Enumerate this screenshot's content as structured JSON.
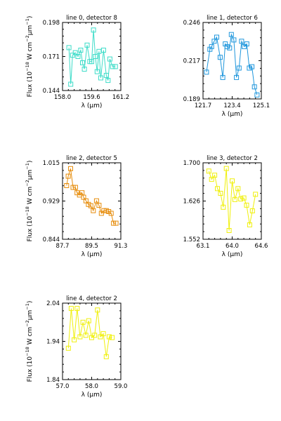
{
  "chart_data": [
    {
      "type": "line",
      "title": "line 0, detector 8",
      "color": "#3cdcc8",
      "xlim": [
        158.0,
        161.2
      ],
      "ylim": [
        0.144,
        0.198
      ],
      "xticks": [
        "158.0",
        "159.6",
        "161.2"
      ],
      "yticks": [
        "0.144",
        "0.171",
        "0.198"
      ],
      "xlabel": "λ (μm)",
      "ylabel": "Flux (10⁻¹⁸ W cm⁻² μm⁻¹)",
      "show_ylabel": true,
      "x": [
        158.35,
        158.45,
        158.55,
        158.7,
        158.85,
        159.0,
        159.1,
        159.2,
        159.35,
        159.5,
        159.6,
        159.7,
        159.8,
        159.9,
        160.0,
        160.1,
        160.25,
        160.4,
        160.5,
        160.6,
        160.75,
        160.9
      ],
      "y": [
        0.178,
        0.149,
        0.172,
        0.174,
        0.171,
        0.176,
        0.166,
        0.161,
        0.18,
        0.167,
        0.167,
        0.192,
        0.171,
        0.159,
        0.175,
        0.154,
        0.176,
        0.156,
        0.152,
        0.169,
        0.163,
        0.163
      ]
    },
    {
      "type": "line",
      "title": "line 1, detector 6",
      "color": "#1e96dc",
      "xlim": [
        121.7,
        125.1
      ],
      "ylim": [
        0.189,
        0.246
      ],
      "xticks": [
        "121.7",
        "123.4",
        "125.1"
      ],
      "yticks": [
        "0.189",
        "0.217",
        "0.246"
      ],
      "xlabel": "λ (μm)",
      "ylabel": "",
      "show_ylabel": false,
      "x": [
        121.9,
        122.1,
        122.2,
        122.35,
        122.5,
        122.7,
        122.85,
        123.0,
        123.1,
        123.25,
        123.35,
        123.5,
        123.65,
        123.8,
        123.95,
        124.1,
        124.25,
        124.4,
        124.55,
        124.7,
        124.85
      ],
      "y": [
        0.209,
        0.226,
        0.228,
        0.232,
        0.235,
        0.22,
        0.205,
        0.23,
        0.228,
        0.227,
        0.237,
        0.233,
        0.205,
        0.212,
        0.232,
        0.228,
        0.23,
        0.212,
        0.213,
        0.198,
        0.192
      ]
    },
    {
      "type": "line",
      "title": "line 2, detector 5",
      "color": "#e68c0a",
      "xlim": [
        87.7,
        91.3
      ],
      "ylim": [
        0.844,
        1.015
      ],
      "xticks": [
        "87.7",
        "89.5",
        "91.3"
      ],
      "yticks": [
        "0.844",
        "0.929",
        "1.015"
      ],
      "xlabel": "λ (μm)",
      "ylabel": "Flux (10⁻¹⁸ W cm⁻² μm⁻¹)",
      "show_ylabel": true,
      "x": [
        87.95,
        88.05,
        88.2,
        88.35,
        88.5,
        88.6,
        88.75,
        88.9,
        89.0,
        89.15,
        89.3,
        89.45,
        89.6,
        89.8,
        89.95,
        90.1,
        90.25,
        90.4,
        90.55,
        90.7,
        90.85,
        91.0
      ],
      "y": [
        0.964,
        0.985,
        1.002,
        0.96,
        0.96,
        0.948,
        0.943,
        0.948,
        0.938,
        0.93,
        0.922,
        0.919,
        0.908,
        0.93,
        0.92,
        0.902,
        0.908,
        0.908,
        0.906,
        0.902,
        0.88,
        0.88
      ]
    },
    {
      "type": "line",
      "title": "line 3, detector 2",
      "color": "#f0f00a",
      "xlim": [
        63.1,
        64.6
      ],
      "ylim": [
        1.552,
        1.7
      ],
      "xticks": [
        "63.1",
        "64.0",
        "64.6"
      ],
      "yticks": [
        "1.552",
        "1.626",
        "1.700"
      ],
      "xlabel": "λ (μm)",
      "ylabel": "",
      "show_ylabel": false,
      "x": [
        63.25,
        63.32,
        63.4,
        63.47,
        63.55,
        63.62,
        63.7,
        63.77,
        63.85,
        63.92,
        64.0,
        64.07,
        64.15,
        64.22,
        64.3,
        64.37,
        64.45
      ],
      "y": [
        1.684,
        1.668,
        1.676,
        1.65,
        1.641,
        1.614,
        1.689,
        1.569,
        1.665,
        1.629,
        1.65,
        1.63,
        1.632,
        1.618,
        1.58,
        1.607,
        1.639
      ]
    },
    {
      "type": "line",
      "title": "line 4, detector 2",
      "color": "#f0f00a",
      "xlim": [
        57.0,
        59.0
      ],
      "ylim": [
        1.84,
        2.04
      ],
      "xticks": [
        "57.0",
        "58.0",
        "59.0"
      ],
      "yticks": [
        "1.84",
        "1.94",
        "2.04"
      ],
      "xlabel": "λ (μm)",
      "ylabel": "Flux (10⁻¹⁸ W cm⁻² μm⁻¹)",
      "show_ylabel": true,
      "x": [
        57.2,
        57.3,
        57.4,
        57.5,
        57.6,
        57.7,
        57.8,
        57.9,
        58.0,
        58.1,
        58.2,
        58.3,
        58.4,
        58.5,
        58.6,
        58.7
      ],
      "y": [
        1.922,
        2.026,
        1.944,
        2.026,
        1.952,
        1.99,
        1.956,
        1.994,
        1.95,
        1.956,
        2.022,
        1.952,
        1.96,
        1.9,
        1.952,
        1.95
      ]
    }
  ]
}
